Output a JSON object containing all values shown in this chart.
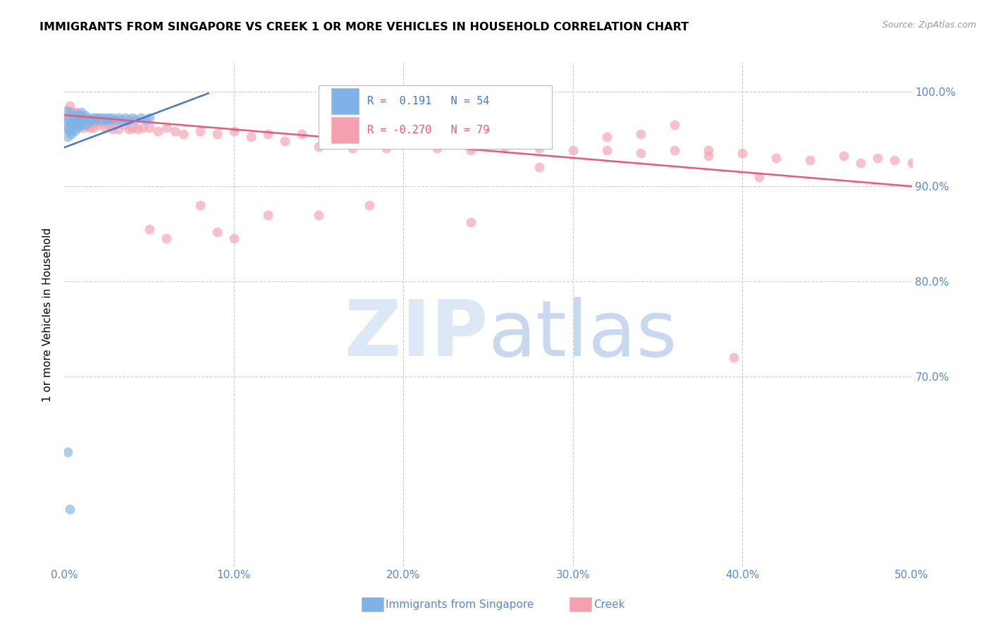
{
  "title": "IMMIGRANTS FROM SINGAPORE VS CREEK 1 OR MORE VEHICLES IN HOUSEHOLD CORRELATION CHART",
  "source": "Source: ZipAtlas.com",
  "ylabel_left": "1 or more Vehicles in Household",
  "legend_label1": "Immigrants from Singapore",
  "legend_label2": "Creek",
  "R1": 0.191,
  "N1": 54,
  "R2": -0.27,
  "N2": 79,
  "xlim": [
    0.0,
    0.5
  ],
  "ylim": [
    0.5,
    1.03
  ],
  "yticks_right": [
    0.7,
    0.8,
    0.9,
    1.0
  ],
  "ytick_right_labels": [
    "70.0%",
    "80.0%",
    "90.0%",
    "100.0%"
  ],
  "xticks": [
    0.0,
    0.1,
    0.2,
    0.3,
    0.4,
    0.5
  ],
  "xtick_labels": [
    "0.0%",
    "10.0%",
    "20.0%",
    "30.0%",
    "40.0%",
    "50.0%"
  ],
  "color_singapore": "#7fb3e8",
  "color_creek": "#f4a0b0",
  "color_trendline_singapore": "#4477cc",
  "color_trendline_creek": "#ee5577",
  "background_color": "#ffffff",
  "grid_color": "#cccccc",
  "axis_label_color": "#5588cc",
  "sg_trendline_x": [
    0.0,
    0.085
  ],
  "sg_trendline_y": [
    0.941,
    0.998
  ],
  "ck_trendline_x": [
    0.0,
    0.5
  ],
  "ck_trendline_y": [
    0.975,
    0.9
  ],
  "singapore_x": [
    0.001,
    0.001,
    0.001,
    0.002,
    0.002,
    0.002,
    0.003,
    0.003,
    0.003,
    0.004,
    0.004,
    0.005,
    0.005,
    0.006,
    0.006,
    0.007,
    0.007,
    0.008,
    0.008,
    0.009,
    0.009,
    0.01,
    0.01,
    0.011,
    0.012,
    0.012,
    0.013,
    0.014,
    0.015,
    0.016,
    0.017,
    0.018,
    0.019,
    0.02,
    0.021,
    0.022,
    0.023,
    0.024,
    0.025,
    0.026,
    0.027,
    0.028,
    0.03,
    0.032,
    0.034,
    0.036,
    0.038,
    0.04,
    0.042,
    0.045,
    0.048,
    0.05,
    0.002,
    0.003
  ],
  "singapore_y": [
    0.96,
    0.97,
    0.98,
    0.952,
    0.962,
    0.972,
    0.958,
    0.968,
    0.978,
    0.955,
    0.965,
    0.96,
    0.972,
    0.958,
    0.968,
    0.965,
    0.975,
    0.962,
    0.972,
    0.965,
    0.975,
    0.968,
    0.978,
    0.97,
    0.965,
    0.975,
    0.97,
    0.972,
    0.968,
    0.97,
    0.972,
    0.97,
    0.972,
    0.972,
    0.97,
    0.972,
    0.97,
    0.972,
    0.97,
    0.972,
    0.97,
    0.972,
    0.97,
    0.972,
    0.97,
    0.972,
    0.97,
    0.972,
    0.97,
    0.972,
    0.97,
    0.972,
    0.62,
    0.56
  ],
  "creek_x": [
    0.003,
    0.005,
    0.006,
    0.007,
    0.008,
    0.009,
    0.01,
    0.011,
    0.012,
    0.013,
    0.014,
    0.015,
    0.016,
    0.017,
    0.018,
    0.019,
    0.02,
    0.022,
    0.024,
    0.026,
    0.028,
    0.03,
    0.032,
    0.035,
    0.038,
    0.04,
    0.043,
    0.046,
    0.05,
    0.055,
    0.06,
    0.065,
    0.07,
    0.08,
    0.09,
    0.1,
    0.11,
    0.12,
    0.13,
    0.14,
    0.15,
    0.16,
    0.17,
    0.18,
    0.19,
    0.2,
    0.22,
    0.24,
    0.26,
    0.28,
    0.3,
    0.32,
    0.34,
    0.36,
    0.38,
    0.4,
    0.42,
    0.44,
    0.46,
    0.47,
    0.48,
    0.49,
    0.5,
    0.395,
    0.41,
    0.05,
    0.06,
    0.12,
    0.15,
    0.18,
    0.24,
    0.28,
    0.32,
    0.34,
    0.36,
    0.38,
    0.1,
    0.08,
    0.09
  ],
  "creek_y": [
    0.985,
    0.978,
    0.972,
    0.978,
    0.965,
    0.972,
    0.968,
    0.962,
    0.972,
    0.965,
    0.97,
    0.962,
    0.968,
    0.962,
    0.97,
    0.968,
    0.965,
    0.968,
    0.962,
    0.965,
    0.96,
    0.965,
    0.96,
    0.965,
    0.96,
    0.962,
    0.96,
    0.962,
    0.962,
    0.958,
    0.962,
    0.958,
    0.955,
    0.958,
    0.955,
    0.958,
    0.952,
    0.955,
    0.948,
    0.955,
    0.942,
    0.955,
    0.94,
    0.955,
    0.94,
    0.945,
    0.94,
    0.938,
    0.942,
    0.94,
    0.938,
    0.938,
    0.935,
    0.938,
    0.932,
    0.935,
    0.93,
    0.928,
    0.932,
    0.925,
    0.93,
    0.928,
    0.925,
    0.72,
    0.91,
    0.855,
    0.845,
    0.87,
    0.87,
    0.88,
    0.862,
    0.92,
    0.952,
    0.955,
    0.965,
    0.938,
    0.845,
    0.88,
    0.852
  ]
}
